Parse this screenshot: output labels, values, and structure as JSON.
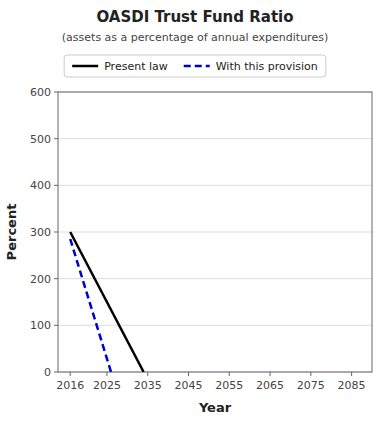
{
  "chart_data": {
    "type": "line",
    "title": "OASDI Trust Fund Ratio",
    "subtitle": "(assets as a percentage of annual expenditures)",
    "xlabel": "Year",
    "ylabel": "Percent",
    "xlim": [
      2013,
      2090
    ],
    "ylim": [
      0,
      600
    ],
    "xticks": [
      2016,
      2025,
      2035,
      2045,
      2055,
      2065,
      2075,
      2085
    ],
    "yticks": [
      0,
      100,
      200,
      300,
      400,
      500,
      600
    ],
    "grid": "y",
    "legend": "top",
    "series": [
      {
        "name": "Present law",
        "color": "#000000",
        "line_style": "solid",
        "x": [
          2016,
          2034
        ],
        "values": [
          300,
          0
        ]
      },
      {
        "name": "With this provision",
        "color": "#0000cc",
        "line_style": "dashed",
        "x": [
          2016,
          2026
        ],
        "values": [
          285,
          0
        ]
      }
    ]
  }
}
